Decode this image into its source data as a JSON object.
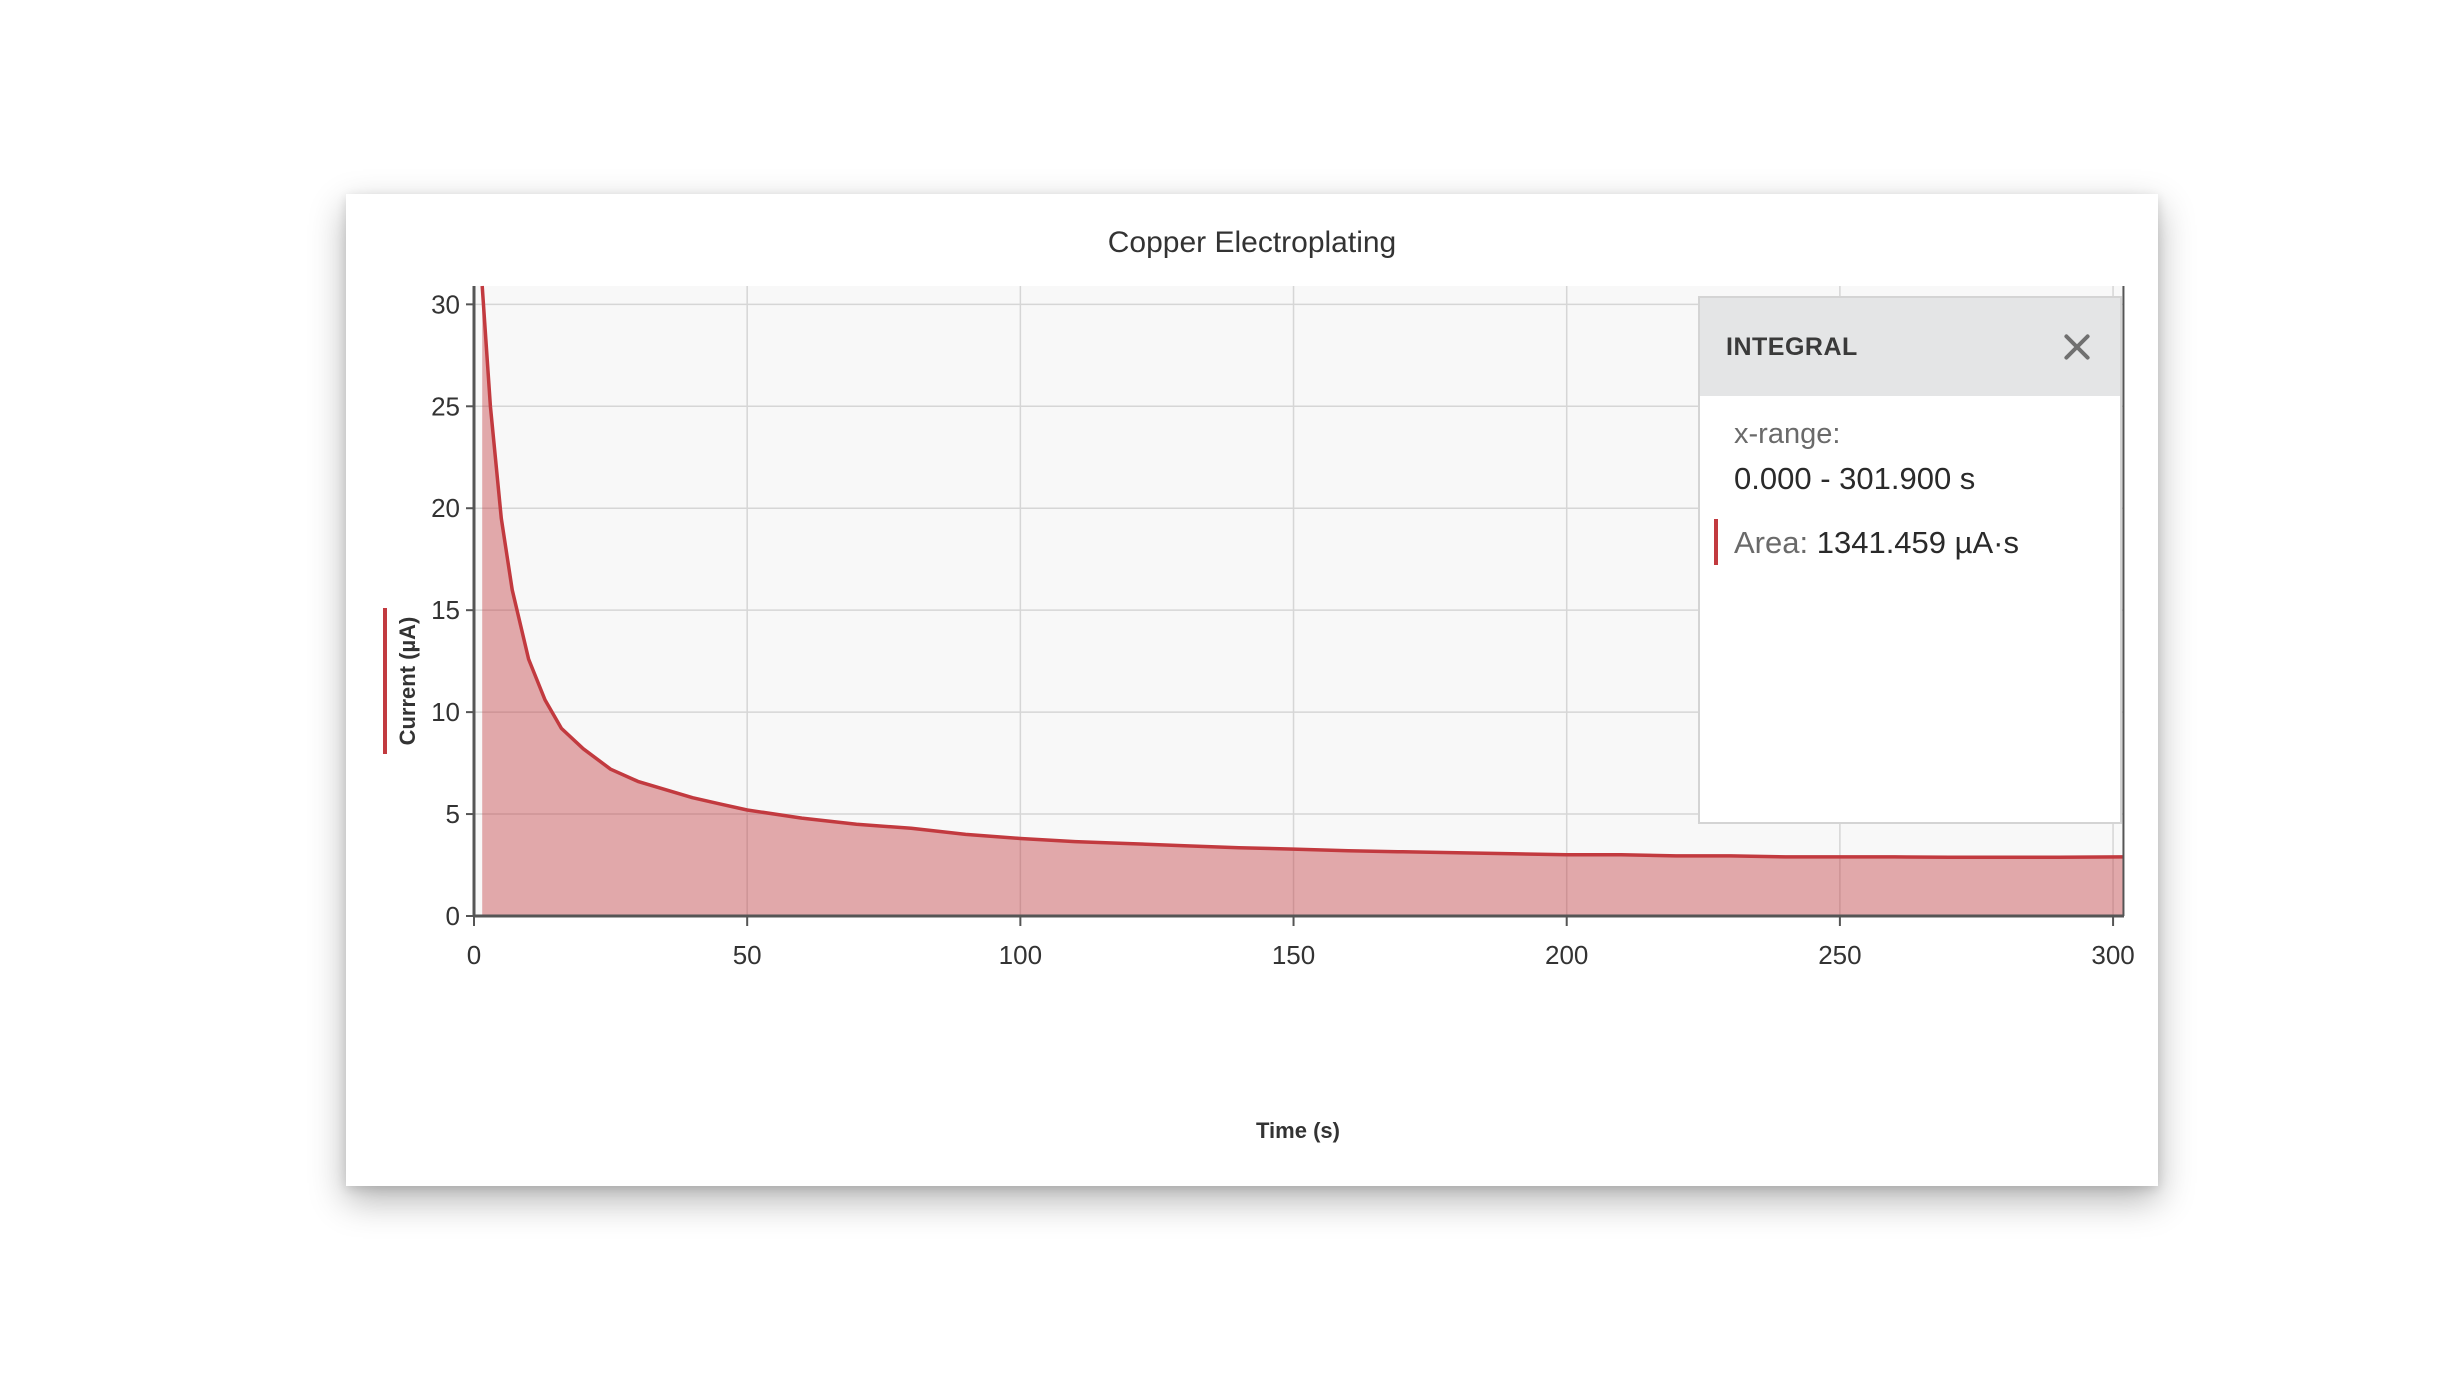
{
  "chart_data": {
    "type": "area",
    "title": "Copper Electroplating",
    "xlabel": "Time (s)",
    "ylabel": "Current (µA)",
    "xlim": [
      0,
      302
    ],
    "ylim": [
      0,
      30.9
    ],
    "xticks": [
      0,
      50,
      100,
      150,
      200,
      250,
      300
    ],
    "yticks": [
      0,
      5,
      10,
      15,
      20,
      25,
      30
    ],
    "grid": true,
    "series": [
      {
        "color": "#c23a3f",
        "x": [
          1.5,
          3,
          5,
          7,
          10,
          13,
          16,
          20,
          25,
          30,
          35,
          40,
          45,
          50,
          60,
          70,
          80,
          90,
          100,
          110,
          120,
          130,
          140,
          150,
          160,
          170,
          180,
          190,
          200,
          210,
          220,
          230,
          240,
          250,
          260,
          270,
          280,
          290,
          301.9
        ],
        "y": [
          30.9,
          25,
          19.5,
          16,
          12.6,
          10.6,
          9.2,
          8.2,
          7.2,
          6.6,
          6.2,
          5.8,
          5.5,
          5.2,
          4.8,
          4.5,
          4.3,
          4.0,
          3.8,
          3.65,
          3.55,
          3.45,
          3.35,
          3.28,
          3.2,
          3.15,
          3.1,
          3.05,
          3.0,
          3.0,
          2.95,
          2.95,
          2.9,
          2.9,
          2.9,
          2.88,
          2.88,
          2.88,
          2.9
        ]
      }
    ]
  },
  "panel": {
    "title": "INTEGRAL",
    "range_label": "x-range:",
    "range_value": "0.000 - 301.900 s",
    "area_label": "Area:",
    "area_value": "1341.459 µA·s"
  }
}
